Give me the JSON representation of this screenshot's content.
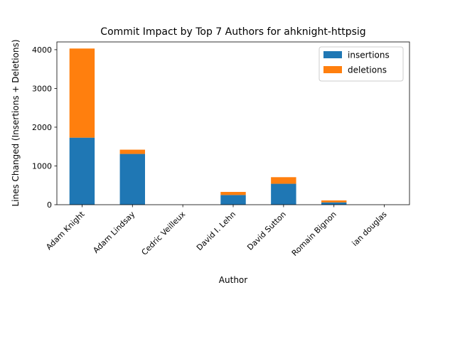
{
  "chart_data": {
    "type": "bar",
    "stacked": true,
    "title": "Commit Impact by Top 7 Authors for ahknight-httpsig",
    "xlabel": "Author",
    "ylabel": "Lines Changed (Insertions + Deletions)",
    "categories": [
      "Adam Knight",
      "Adam Lindsay",
      "Cedric Veilleux",
      "David I. Lehn",
      "David Sutton",
      "Romain Bignon",
      "ian douglas"
    ],
    "series": [
      {
        "name": "insertions",
        "color": "#1f77b4",
        "values": [
          1730,
          1310,
          0,
          250,
          540,
          60,
          0
        ]
      },
      {
        "name": "deletions",
        "color": "#ff7f0e",
        "values": [
          2300,
          110,
          0,
          80,
          170,
          50,
          0
        ]
      }
    ],
    "ylim": [
      0,
      4200
    ],
    "yticks": [
      0,
      1000,
      2000,
      3000,
      4000
    ],
    "ytick_labels": [
      "0",
      "1000",
      "2000",
      "3000",
      "4000"
    ],
    "grid": false,
    "legend_position": "top-right"
  }
}
